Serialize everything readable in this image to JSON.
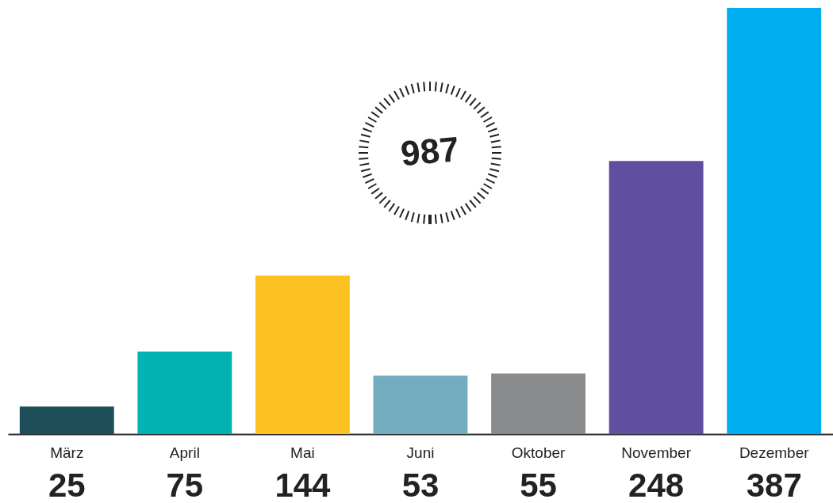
{
  "chart_data": {
    "type": "bar",
    "categories": [
      "März",
      "April",
      "Mai",
      "Juni",
      "Oktober",
      "November",
      "Dezember"
    ],
    "values": [
      25,
      75,
      144,
      53,
      55,
      248,
      387
    ],
    "colors": [
      "#1d4e5a",
      "#00b2b2",
      "#fdc121",
      "#72acbe",
      "#8a8b8d",
      "#604ea0",
      "#00aeef"
    ],
    "data_labels": true,
    "grid": false,
    "tick_labels": "x",
    "annotations": [
      "987"
    ]
  }
}
